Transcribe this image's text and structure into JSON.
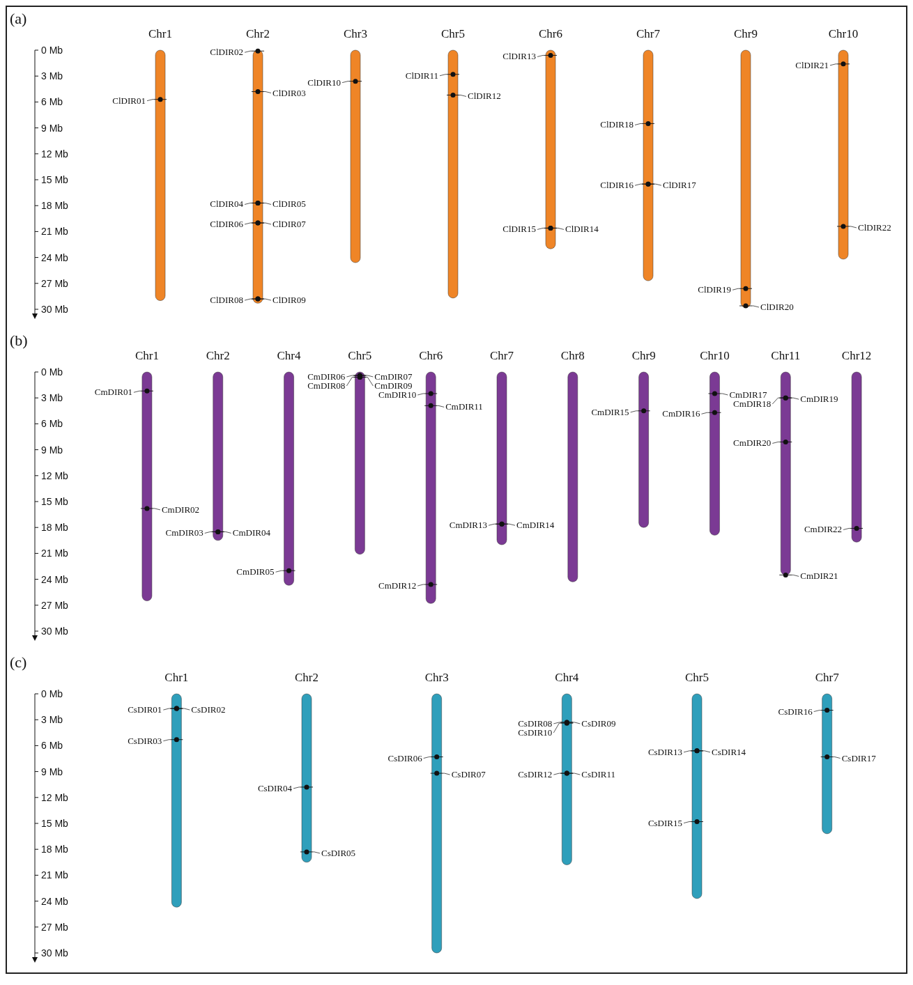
{
  "chart_data": [
    {
      "type": "bar",
      "title": "(a)",
      "categories": [
        "Chr1",
        "Chr2",
        "Chr3",
        "Chr5",
        "Chr6",
        "Chr7",
        "Chr9",
        "Chr10"
      ],
      "ylim": [
        30,
        0
      ],
      "yticks": [
        {
          "value": 0,
          "label": "0 Mb"
        },
        {
          "value": 3,
          "label": "3 Mb"
        },
        {
          "value": 6,
          "label": "6 Mb"
        },
        {
          "value": 9,
          "label": "9 Mb"
        },
        {
          "value": 12,
          "label": "12 Mb"
        },
        {
          "value": 15,
          "label": "15 Mb"
        },
        {
          "value": 18,
          "label": "18 Mb"
        },
        {
          "value": 21,
          "label": "21 Mb"
        },
        {
          "value": 24,
          "label": "24 Mb"
        },
        {
          "value": 27,
          "label": "27 Mb"
        },
        {
          "value": 30,
          "label": "30 Mb"
        }
      ],
      "series": [
        {
          "color": "#ef8527",
          "values": [
            29.0,
            29.3,
            24.6,
            28.7,
            23.0,
            26.7,
            29.8,
            24.2
          ]
        },
        {
          "type": "scatter",
          "marker": "circle",
          "color": "#111111",
          "x": [
            "Chr1",
            "Chr2",
            "Chr2",
            "Chr2",
            "Chr2",
            "Chr2",
            "Chr2",
            "Chr2",
            "Chr2",
            "Chr3",
            "Chr5",
            "Chr5",
            "Chr6",
            "Chr6",
            "Chr6",
            "Chr7",
            "Chr7",
            "Chr7",
            "Chr9",
            "Chr9",
            "Chr10",
            "Chr10"
          ],
          "values": [
            5.7,
            0.1,
            4.8,
            17.7,
            17.7,
            20.0,
            20.0,
            28.8,
            28.8,
            3.6,
            2.8,
            5.2,
            0.6,
            20.6,
            20.6,
            15.5,
            15.5,
            8.5,
            27.6,
            29.6,
            1.6,
            20.4
          ],
          "value_labels": [
            "ClDIR01",
            "ClDIR02",
            "ClDIR03",
            "ClDIR04",
            "ClDIR05",
            "ClDIR06",
            "ClDIR07",
            "ClDIR08",
            "ClDIR09",
            "ClDIR10",
            "ClDIR11",
            "ClDIR12",
            "ClDIR13",
            "ClDIR14",
            "ClDIR15",
            "ClDIR16",
            "ClDIR17",
            "ClDIR18",
            "ClDIR19",
            "ClDIR20",
            "ClDIR21",
            "ClDIR22"
          ]
        }
      ]
    },
    {
      "type": "bar",
      "title": "(b)",
      "categories": [
        "Chr1",
        "Chr2",
        "Chr4",
        "Chr5",
        "Chr6",
        "Chr7",
        "Chr8",
        "Chr9",
        "Chr10",
        "Chr11",
        "Chr12"
      ],
      "ylim": [
        30,
        0
      ],
      "yticks": [
        {
          "value": 0,
          "label": "0 Mb"
        },
        {
          "value": 3,
          "label": "3 Mb"
        },
        {
          "value": 6,
          "label": "6 Mb"
        },
        {
          "value": 9,
          "label": "9 Mb"
        },
        {
          "value": 12,
          "label": "12 Mb"
        },
        {
          "value": 15,
          "label": "15 Mb"
        },
        {
          "value": 18,
          "label": "18 Mb"
        },
        {
          "value": 21,
          "label": "21 Mb"
        },
        {
          "value": 24,
          "label": "24 Mb"
        },
        {
          "value": 27,
          "label": "27 Mb"
        },
        {
          "value": 30,
          "label": "30 Mb"
        }
      ],
      "series": [
        {
          "color": "#7b3a94",
          "values": [
            26.5,
            19.5,
            24.7,
            21.1,
            26.8,
            20.0,
            24.3,
            18.0,
            18.9,
            23.5,
            19.7
          ]
        },
        {
          "type": "scatter",
          "marker": "circle",
          "color": "#111111",
          "x": [
            "Chr1",
            "Chr1",
            "Chr2",
            "Chr2",
            "Chr4",
            "Chr5",
            "Chr5",
            "Chr5",
            "Chr5",
            "Chr6",
            "Chr6",
            "Chr6",
            "Chr7",
            "Chr7",
            "Chr9",
            "Chr10",
            "Chr10",
            "Chr11",
            "Chr11",
            "Chr11",
            "Chr11",
            "Chr12"
          ],
          "values": [
            2.2,
            15.8,
            18.5,
            18.5,
            23.0,
            0.4,
            0.4,
            0.6,
            0.6,
            2.5,
            3.9,
            24.6,
            17.6,
            17.6,
            4.5,
            4.7,
            2.5,
            3.0,
            3.0,
            8.1,
            23.5,
            18.1
          ],
          "value_labels": [
            "CmDIR01",
            "CmDIR02",
            "CmDIR03",
            "CmDIR04",
            "CmDIR05",
            "CmDIR06",
            "CmDIR07",
            "CmDIR08",
            "CmDIR09",
            "CmDIR10",
            "CmDIR11",
            "CmDIR12",
            "CmDIR13",
            "CmDIR14",
            "CmDIR15",
            "CmDIR16",
            "CmDIR17",
            "CmDIR18",
            "CmDIR19",
            "CmDIR20",
            "CmDIR21",
            "CmDIR22"
          ]
        }
      ]
    },
    {
      "type": "bar",
      "title": "(c)",
      "categories": [
        "Chr1",
        "Chr2",
        "Chr3",
        "Chr4",
        "Chr5",
        "Chr7"
      ],
      "ylim": [
        30,
        0
      ],
      "yticks": [
        {
          "value": 0,
          "label": "0 Mb"
        },
        {
          "value": 3,
          "label": "3 Mb"
        },
        {
          "value": 6,
          "label": "6 Mb"
        },
        {
          "value": 9,
          "label": "9 Mb"
        },
        {
          "value": 12,
          "label": "12 Mb"
        },
        {
          "value": 15,
          "label": "15 Mb"
        },
        {
          "value": 18,
          "label": "18 Mb"
        },
        {
          "value": 21,
          "label": "21 Mb"
        },
        {
          "value": 24,
          "label": "24 Mb"
        },
        {
          "value": 27,
          "label": "27 Mb"
        },
        {
          "value": 30,
          "label": "30 Mb"
        }
      ],
      "series": [
        {
          "color": "#2f9fbb",
          "values": [
            24.7,
            19.5,
            30.0,
            19.8,
            23.7,
            16.2
          ]
        },
        {
          "type": "scatter",
          "marker": "circle",
          "color": "#111111",
          "x": [
            "Chr1",
            "Chr1",
            "Chr1",
            "Chr2",
            "Chr2",
            "Chr3",
            "Chr3",
            "Chr4",
            "Chr4",
            "Chr4",
            "Chr4",
            "Chr4",
            "Chr5",
            "Chr5",
            "Chr5",
            "Chr7",
            "Chr7"
          ],
          "values": [
            1.7,
            1.7,
            5.3,
            10.8,
            18.3,
            7.3,
            9.2,
            3.3,
            3.3,
            3.4,
            9.2,
            9.2,
            6.6,
            6.6,
            14.8,
            1.9,
            7.3
          ],
          "value_labels": [
            "CsDIR01",
            "CsDIR02",
            "CsDIR03",
            "CsDIR04",
            "CsDIR05",
            "CsDIR06",
            "CsDIR07",
            "CsDIR08",
            "CsDIR09",
            "CsDIR10",
            "CsDIR11",
            "CsDIR12",
            "CsDIR13",
            "CsDIR14",
            "CsDIR15",
            "CsDIR16",
            "CsDIR17"
          ]
        }
      ]
    }
  ]
}
